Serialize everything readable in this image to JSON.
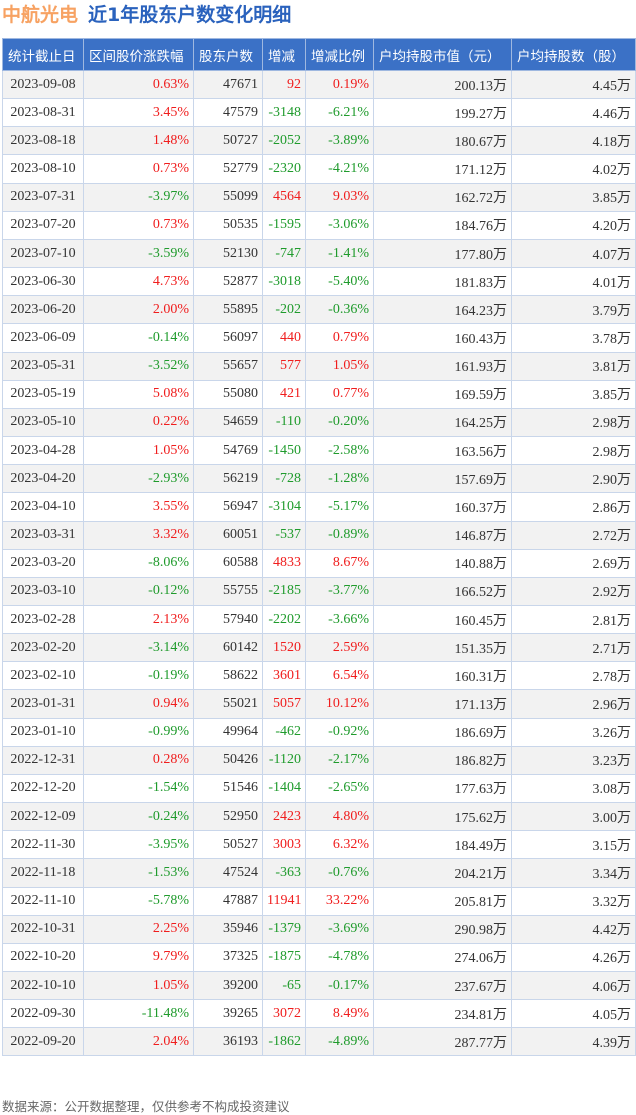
{
  "title": {
    "company": "中航光电",
    "subtitle": "近1年股东户数变化明细"
  },
  "colors": {
    "header_bg": "#3b71c6",
    "up": "#f01d1d",
    "down": "#1f9b2c",
    "company": "#f7a262",
    "subtitle": "#2a62bd"
  },
  "columns": [
    "统计截止日",
    "区间股价涨跌幅",
    "股东户数",
    "增减",
    "增减比例",
    "户均持股市值（元）",
    "户均持股数（股）"
  ],
  "rows": [
    [
      "2023-09-08",
      "0.63%",
      "47671",
      "92",
      "0.19%",
      "200.13万",
      "4.45万"
    ],
    [
      "2023-08-31",
      "3.45%",
      "47579",
      "-3148",
      "-6.21%",
      "199.27万",
      "4.46万"
    ],
    [
      "2023-08-18",
      "1.48%",
      "50727",
      "-2052",
      "-3.89%",
      "180.67万",
      "4.18万"
    ],
    [
      "2023-08-10",
      "0.73%",
      "52779",
      "-2320",
      "-4.21%",
      "171.12万",
      "4.02万"
    ],
    [
      "2023-07-31",
      "-3.97%",
      "55099",
      "4564",
      "9.03%",
      "162.72万",
      "3.85万"
    ],
    [
      "2023-07-20",
      "0.73%",
      "50535",
      "-1595",
      "-3.06%",
      "184.76万",
      "4.20万"
    ],
    [
      "2023-07-10",
      "-3.59%",
      "52130",
      "-747",
      "-1.41%",
      "177.80万",
      "4.07万"
    ],
    [
      "2023-06-30",
      "4.73%",
      "52877",
      "-3018",
      "-5.40%",
      "181.83万",
      "4.01万"
    ],
    [
      "2023-06-20",
      "2.00%",
      "55895",
      "-202",
      "-0.36%",
      "164.23万",
      "3.79万"
    ],
    [
      "2023-06-09",
      "-0.14%",
      "56097",
      "440",
      "0.79%",
      "160.43万",
      "3.78万"
    ],
    [
      "2023-05-31",
      "-3.52%",
      "55657",
      "577",
      "1.05%",
      "161.93万",
      "3.81万"
    ],
    [
      "2023-05-19",
      "5.08%",
      "55080",
      "421",
      "0.77%",
      "169.59万",
      "3.85万"
    ],
    [
      "2023-05-10",
      "0.22%",
      "54659",
      "-110",
      "-0.20%",
      "164.25万",
      "2.98万"
    ],
    [
      "2023-04-28",
      "1.05%",
      "54769",
      "-1450",
      "-2.58%",
      "163.56万",
      "2.98万"
    ],
    [
      "2023-04-20",
      "-2.93%",
      "56219",
      "-728",
      "-1.28%",
      "157.69万",
      "2.90万"
    ],
    [
      "2023-04-10",
      "3.55%",
      "56947",
      "-3104",
      "-5.17%",
      "160.37万",
      "2.86万"
    ],
    [
      "2023-03-31",
      "3.32%",
      "60051",
      "-537",
      "-0.89%",
      "146.87万",
      "2.72万"
    ],
    [
      "2023-03-20",
      "-8.06%",
      "60588",
      "4833",
      "8.67%",
      "140.88万",
      "2.69万"
    ],
    [
      "2023-03-10",
      "-0.12%",
      "55755",
      "-2185",
      "-3.77%",
      "166.52万",
      "2.92万"
    ],
    [
      "2023-02-28",
      "2.13%",
      "57940",
      "-2202",
      "-3.66%",
      "160.45万",
      "2.81万"
    ],
    [
      "2023-02-20",
      "-3.14%",
      "60142",
      "1520",
      "2.59%",
      "151.35万",
      "2.71万"
    ],
    [
      "2023-02-10",
      "-0.19%",
      "58622",
      "3601",
      "6.54%",
      "160.31万",
      "2.78万"
    ],
    [
      "2023-01-31",
      "0.94%",
      "55021",
      "5057",
      "10.12%",
      "171.13万",
      "2.96万"
    ],
    [
      "2023-01-10",
      "-0.99%",
      "49964",
      "-462",
      "-0.92%",
      "186.69万",
      "3.26万"
    ],
    [
      "2022-12-31",
      "0.28%",
      "50426",
      "-1120",
      "-2.17%",
      "186.82万",
      "3.23万"
    ],
    [
      "2022-12-20",
      "-1.54%",
      "51546",
      "-1404",
      "-2.65%",
      "177.63万",
      "3.08万"
    ],
    [
      "2022-12-09",
      "-0.24%",
      "52950",
      "2423",
      "4.80%",
      "175.62万",
      "3.00万"
    ],
    [
      "2022-11-30",
      "-3.95%",
      "50527",
      "3003",
      "6.32%",
      "184.49万",
      "3.15万"
    ],
    [
      "2022-11-18",
      "-1.53%",
      "47524",
      "-363",
      "-0.76%",
      "204.21万",
      "3.34万"
    ],
    [
      "2022-11-10",
      "-5.78%",
      "47887",
      "11941",
      "33.22%",
      "205.81万",
      "3.32万"
    ],
    [
      "2022-10-31",
      "2.25%",
      "35946",
      "-1379",
      "-3.69%",
      "290.98万",
      "4.42万"
    ],
    [
      "2022-10-20",
      "9.79%",
      "37325",
      "-1875",
      "-4.78%",
      "274.06万",
      "4.26万"
    ],
    [
      "2022-10-10",
      "1.05%",
      "39200",
      "-65",
      "-0.17%",
      "237.67万",
      "4.06万"
    ],
    [
      "2022-09-30",
      "-11.48%",
      "39265",
      "3072",
      "8.49%",
      "234.81万",
      "4.05万"
    ],
    [
      "2022-09-20",
      "2.04%",
      "36193",
      "-1862",
      "-4.89%",
      "287.77万",
      "4.39万"
    ]
  ],
  "source": "数据来源：公开数据整理，仅供参考不构成投资建议"
}
